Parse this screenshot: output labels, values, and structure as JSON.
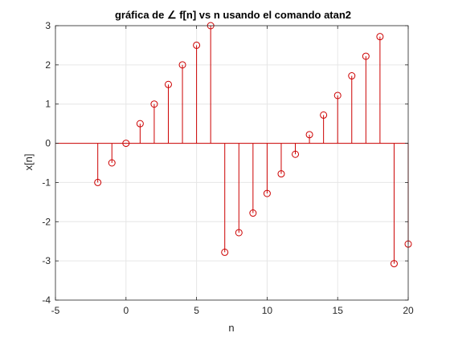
{
  "chart_data": {
    "type": "stem",
    "title": "gráfica de  ∠ f[n] vs n usando el comando atan2",
    "xlabel": "n",
    "ylabel": "x[n]",
    "xlim": [
      -5,
      20
    ],
    "ylim": [
      -4,
      3
    ],
    "xticks": [
      -5,
      0,
      5,
      10,
      15,
      20
    ],
    "yticks": [
      -4,
      -3,
      -2,
      -1,
      0,
      1,
      2,
      3
    ],
    "grid": true,
    "baseline": 0,
    "colors": {
      "stem": "#cc0000",
      "grid": "#e6e6e6",
      "axes": "#262626"
    },
    "series": [
      {
        "x": [
          -2,
          -1,
          0,
          1,
          2,
          3,
          4,
          5,
          6,
          7,
          8,
          9,
          10,
          11,
          12,
          13,
          14,
          15,
          16,
          17,
          18,
          19,
          20
        ],
        "values": [
          -1.0,
          -0.5,
          0.0,
          0.5,
          1.0,
          1.5,
          2.0,
          2.5,
          3.0,
          -2.78,
          -2.28,
          -1.78,
          -1.28,
          -0.78,
          -0.28,
          0.22,
          0.72,
          1.22,
          1.72,
          2.22,
          2.72,
          -3.07,
          -2.57
        ]
      }
    ]
  }
}
